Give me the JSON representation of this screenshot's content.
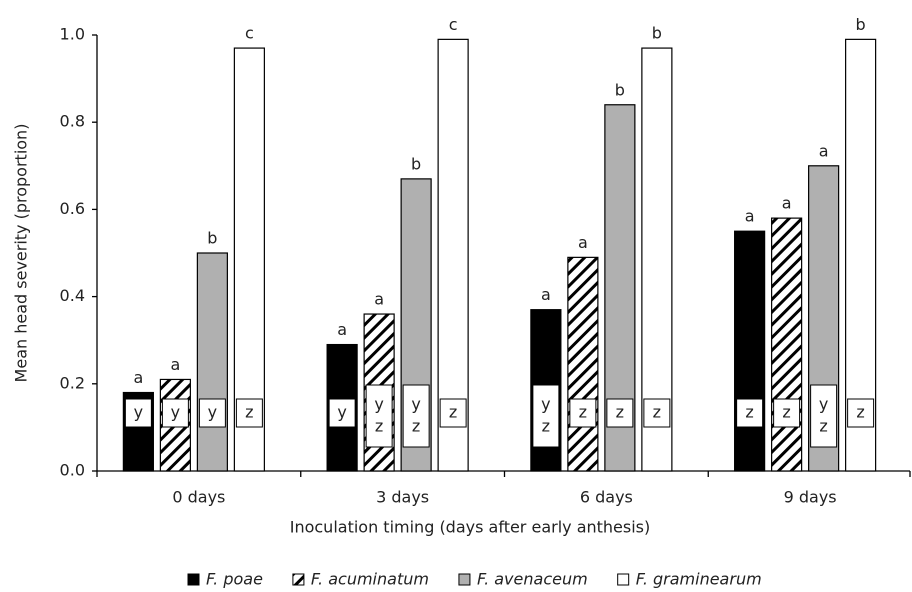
{
  "chart_data": {
    "type": "bar",
    "x_label": "Inoculation timing (days after early anthesis)",
    "y_label": "Mean head severity (proportion)",
    "categories": [
      "0 days",
      "3 days",
      "6 days",
      "9 days"
    ],
    "ylim": [
      0,
      1
    ],
    "yticks": [
      {
        "value": 0,
        "label": "0.0"
      },
      0.2,
      0.4,
      0.6,
      0.8,
      {
        "value": 1,
        "label": "1.0"
      }
    ],
    "grid": false,
    "legend": "bottom",
    "series": [
      {
        "name": "F. poae",
        "color": "#000000",
        "hatch": false,
        "values": [
          0.18,
          0.29,
          0.37,
          0.55
        ],
        "letters": [
          "a",
          "a",
          "a",
          "a"
        ],
        "groups": [
          [
            "y"
          ],
          [
            "y"
          ],
          [
            "y",
            "z"
          ],
          [
            "z"
          ]
        ]
      },
      {
        "name": "F. acuminatum",
        "color": "#ffffff",
        "hatch": true,
        "values": [
          0.21,
          0.36,
          0.49,
          0.58
        ],
        "letters": [
          "a",
          "a",
          "a",
          "a"
        ],
        "groups": [
          [
            "y"
          ],
          [
            "y",
            "z"
          ],
          [
            "z"
          ],
          [
            "z"
          ]
        ]
      },
      {
        "name": "F. avenaceum",
        "color": "#b0b0b0",
        "hatch": false,
        "values": [
          0.5,
          0.67,
          0.84,
          0.7
        ],
        "letters": [
          "b",
          "b",
          "b",
          "a"
        ],
        "groups": [
          [
            "y"
          ],
          [
            "y",
            "z"
          ],
          [
            "z"
          ],
          [
            "y",
            "z"
          ]
        ]
      },
      {
        "name": "F. graminearum",
        "color": "#ffffff",
        "hatch": false,
        "values": [
          0.97,
          0.99,
          0.97,
          0.99
        ],
        "letters": [
          "c",
          "c",
          "b",
          "b"
        ],
        "groups": [
          [
            "z"
          ],
          [
            "z"
          ],
          [
            "z"
          ],
          [
            "z"
          ]
        ]
      }
    ]
  }
}
